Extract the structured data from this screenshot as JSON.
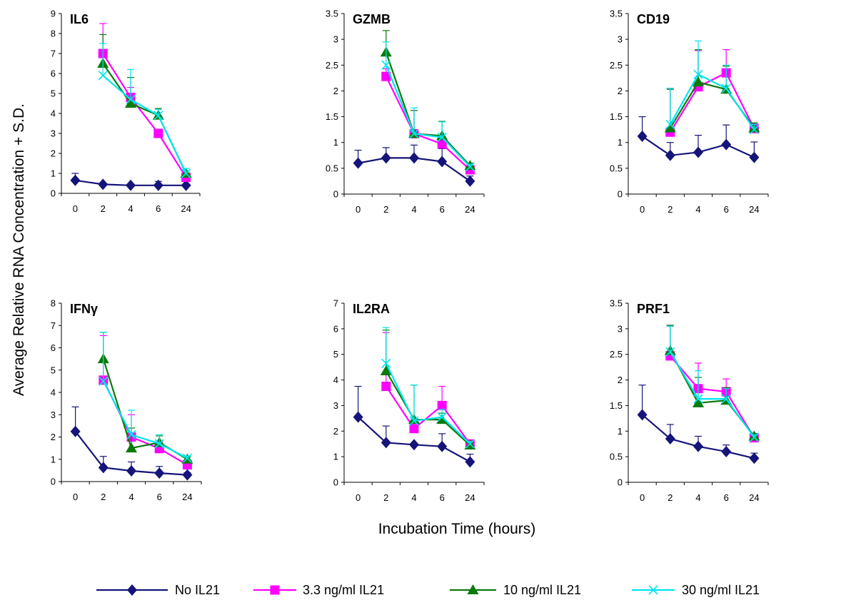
{
  "figure": {
    "ylabel": "Average Relative RNA Concentration + S.D.",
    "xlabel": "Incubation Time (hours)"
  },
  "legend": [
    {
      "name": "No IL21",
      "color": "#14147a",
      "marker": "diamond"
    },
    {
      "name": "3.3 ng/ml IL21",
      "color": "#ff00ff",
      "marker": "square"
    },
    {
      "name": "10 ng/ml IL21",
      "color": "#0a7a0a",
      "marker": "triangle"
    },
    {
      "name": "30 ng/ml IL21",
      "color": "#00e5ee",
      "marker": "x"
    }
  ],
  "chart_data": [
    {
      "type": "line",
      "title": "IL6",
      "categories": [
        "0",
        "2",
        "4",
        "6",
        "24"
      ],
      "ylim": [
        0,
        9
      ],
      "yticks": [
        "0",
        "1",
        "2",
        "3",
        "4",
        "5",
        "6",
        "7",
        "8",
        "9"
      ],
      "series": [
        {
          "name": "No IL21",
          "values": [
            0.65,
            0.45,
            0.4,
            0.4,
            0.4
          ],
          "err": [
            0.35,
            0,
            0,
            0.2,
            0
          ]
        },
        {
          "name": "3.3 ng/ml IL21",
          "values": [
            null,
            7.0,
            4.8,
            3.0,
            0.8
          ],
          "err": [
            null,
            1.5,
            0.5,
            0,
            0.2
          ]
        },
        {
          "name": "10 ng/ml IL21",
          "values": [
            null,
            6.5,
            4.5,
            3.9,
            1.0
          ],
          "err": [
            null,
            1.45,
            1.3,
            0.35,
            0
          ]
        },
        {
          "name": "30 ng/ml IL21",
          "values": [
            null,
            5.9,
            4.7,
            3.9,
            1.0
          ],
          "err": [
            null,
            1.6,
            1.5,
            0.3,
            0.25
          ]
        }
      ]
    },
    {
      "type": "line",
      "title": "GZMB",
      "categories": [
        "0",
        "2",
        "4",
        "6",
        "24"
      ],
      "ylim": [
        0,
        3.5
      ],
      "yticks": [
        "0",
        "0.5",
        "1",
        "1.5",
        "2",
        "2.5",
        "3",
        "3.5"
      ],
      "series": [
        {
          "name": "No IL21",
          "values": [
            0.6,
            0.7,
            0.7,
            0.63,
            0.25
          ],
          "err": [
            0.25,
            0.2,
            0.25,
            0.25,
            0.1
          ]
        },
        {
          "name": "3.3 ng/ml IL21",
          "values": [
            null,
            2.28,
            1.17,
            0.97,
            0.47
          ],
          "err": [
            null,
            0.15,
            0.45,
            0.1,
            0.05
          ]
        },
        {
          "name": "10 ng/ml IL21",
          "values": [
            null,
            2.75,
            1.17,
            1.13,
            0.55
          ],
          "err": [
            null,
            0.42,
            0.45,
            0.28,
            0.05
          ]
        },
        {
          "name": "30 ng/ml IL21",
          "values": [
            null,
            2.5,
            1.17,
            1.1,
            0.53
          ],
          "err": [
            null,
            0.45,
            0.5,
            0.3,
            0.05
          ]
        }
      ]
    },
    {
      "type": "line",
      "title": "CD19",
      "categories": [
        "0",
        "2",
        "4",
        "6",
        "24"
      ],
      "ylim": [
        0,
        3.5
      ],
      "yticks": [
        "0",
        "0.5",
        "1",
        "1.5",
        "2",
        "2.5",
        "3",
        "3.5"
      ],
      "series": [
        {
          "name": "No IL21",
          "values": [
            1.12,
            0.75,
            0.81,
            0.96,
            0.71
          ],
          "err": [
            0.38,
            0.25,
            0.33,
            0.38,
            0.3
          ]
        },
        {
          "name": "3.3 ng/ml IL21",
          "values": [
            null,
            1.2,
            2.08,
            2.35,
            1.27
          ],
          "err": [
            null,
            0.85,
            0.7,
            0.45,
            0.1
          ]
        },
        {
          "name": "10 ng/ml IL21",
          "values": [
            null,
            1.28,
            2.17,
            2.03,
            1.28
          ],
          "err": [
            null,
            0.75,
            0.63,
            0.45,
            0.1
          ]
        },
        {
          "name": "30 ng/ml IL21",
          "values": [
            null,
            1.35,
            2.32,
            2.05,
            1.25
          ],
          "err": [
            null,
            0.7,
            0.65,
            0.45,
            0.1
          ]
        }
      ]
    },
    {
      "type": "line",
      "title": "IFNγ",
      "categories": [
        "0",
        "2",
        "4",
        "6",
        "24"
      ],
      "ylim": [
        0,
        8
      ],
      "yticks": [
        "0",
        "1",
        "2",
        "3",
        "4",
        "5",
        "6",
        "7",
        "8"
      ],
      "series": [
        {
          "name": "No IL21",
          "values": [
            2.25,
            0.63,
            0.48,
            0.38,
            0.3
          ],
          "err": [
            1.1,
            0.5,
            0.4,
            0.3,
            0.1
          ]
        },
        {
          "name": "3.3 ng/ml IL21",
          "values": [
            null,
            4.55,
            2.0,
            1.48,
            0.75
          ],
          "err": [
            null,
            2.0,
            1.0,
            0.3,
            0.2
          ]
        },
        {
          "name": "10 ng/ml IL21",
          "values": [
            null,
            5.5,
            1.5,
            1.75,
            1.0
          ],
          "err": [
            null,
            1.2,
            0.9,
            0.3,
            0.1
          ]
        },
        {
          "name": "30 ng/ml IL21",
          "values": [
            null,
            4.5,
            2.1,
            1.7,
            1.05
          ],
          "err": [
            null,
            2.2,
            1.1,
            0.4,
            0.1
          ]
        }
      ]
    },
    {
      "type": "line",
      "title": "IL2RA",
      "categories": [
        "0",
        "2",
        "4",
        "6",
        "24"
      ],
      "ylim": [
        0,
        7
      ],
      "yticks": [
        "0",
        "1",
        "2",
        "3",
        "4",
        "5",
        "6",
        "7"
      ],
      "series": [
        {
          "name": "No IL21",
          "values": [
            2.55,
            1.55,
            1.47,
            1.4,
            0.8
          ],
          "err": [
            1.2,
            0.65,
            0,
            0.5,
            0.3
          ]
        },
        {
          "name": "3.3 ng/ml IL21",
          "values": [
            null,
            3.75,
            2.1,
            3.0,
            1.5
          ],
          "err": [
            null,
            2.1,
            0,
            0.75,
            0.1
          ]
        },
        {
          "name": "10 ng/ml IL21",
          "values": [
            null,
            4.35,
            2.45,
            2.45,
            1.45
          ],
          "err": [
            null,
            1.6,
            1.35,
            0.25,
            0.1
          ]
        },
        {
          "name": "30 ng/ml IL21",
          "values": [
            null,
            4.65,
            2.4,
            2.55,
            1.5
          ],
          "err": [
            null,
            1.4,
            1.4,
            0.3,
            0.1
          ]
        }
      ]
    },
    {
      "type": "line",
      "title": "PRF1",
      "categories": [
        "0",
        "2",
        "4",
        "6",
        "24"
      ],
      "ylim": [
        0,
        3.5
      ],
      "yticks": [
        "0",
        "0.5",
        "1",
        "1.5",
        "2",
        "2.5",
        "3",
        "3.5"
      ],
      "series": [
        {
          "name": "No IL21",
          "values": [
            1.32,
            0.85,
            0.7,
            0.6,
            0.47
          ],
          "err": [
            0.58,
            0.28,
            0.2,
            0.13,
            0.1
          ]
        },
        {
          "name": "3.3 ng/ml IL21",
          "values": [
            null,
            2.47,
            1.83,
            1.77,
            0.87
          ],
          "err": [
            null,
            0.58,
            0.5,
            0.25,
            0.05
          ]
        },
        {
          "name": "10 ng/ml IL21",
          "values": [
            null,
            2.57,
            1.55,
            1.6,
            0.9
          ],
          "err": [
            null,
            0.5,
            0.5,
            0.25,
            0.05
          ]
        },
        {
          "name": "30 ng/ml IL21",
          "values": [
            null,
            2.55,
            1.63,
            1.63,
            0.88
          ],
          "err": [
            null,
            0.5,
            0.55,
            0.2,
            0.05
          ]
        }
      ]
    }
  ]
}
